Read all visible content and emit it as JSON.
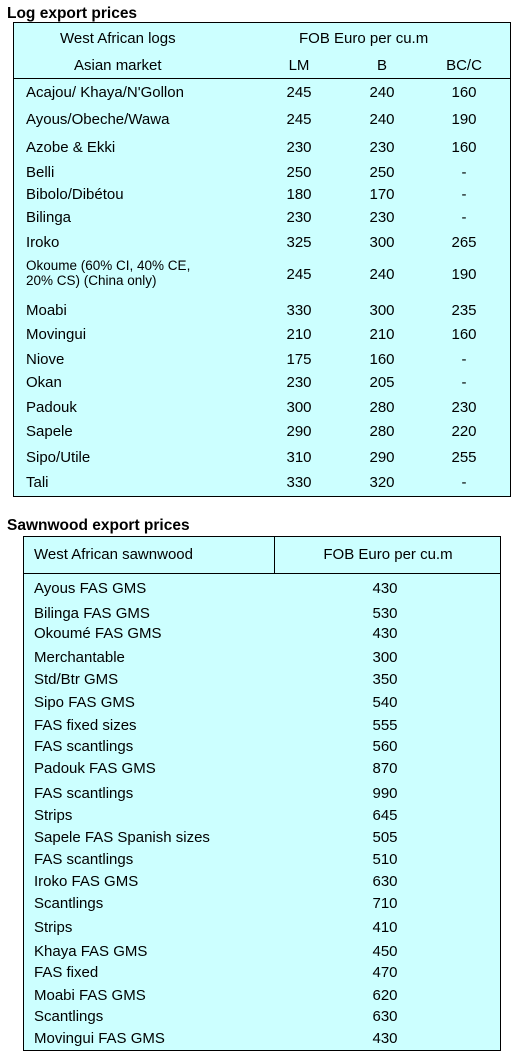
{
  "log_section": {
    "title": "Log export prices",
    "header_group": "West African logs",
    "header_price": "FOB Euro per cu.m",
    "header_market": "Asian market",
    "col_lm": "LM",
    "col_b": "B",
    "col_bcc": "BC/C",
    "rows": [
      {
        "name": "Acajou/ Khaya/N'Gollon",
        "lm": "245",
        "b": "240",
        "bcc": "160"
      },
      {
        "name": "Ayous/Obeche/Wawa",
        "lm": "245",
        "b": "240",
        "bcc": "190"
      },
      {
        "name": "Azobe & Ekki",
        "lm": "230",
        "b": "230",
        "bcc": "160"
      },
      {
        "name": "Belli",
        "lm": "250",
        "b": "250",
        "bcc": "-"
      },
      {
        "name": "Bibolo/Dibétou",
        "lm": "180",
        "b": "170",
        "bcc": "-"
      },
      {
        "name": "Bilinga",
        "lm": "230",
        "b": "230",
        "bcc": "-"
      },
      {
        "name": "Iroko",
        "lm": "325",
        "b": "300",
        "bcc": "265"
      },
      {
        "name": "Okoume (60% CI, 40% CE, 20% CS) (China only)",
        "name_line1": "Okoume (60% CI, 40% CE,",
        "name_line2": "20% CS) (China only)",
        "lm": "245",
        "b": "240",
        "bcc": "190"
      },
      {
        "name": "Moabi",
        "lm": "330",
        "b": "300",
        "bcc": "235"
      },
      {
        "name": "Movingui",
        "lm": "210",
        "b": "210",
        "bcc": "160"
      },
      {
        "name": "Niove",
        "lm": "175",
        "b": "160",
        "bcc": "-"
      },
      {
        "name": "Okan",
        "lm": "230",
        "b": "205",
        "bcc": "-"
      },
      {
        "name": "Padouk",
        "lm": "300",
        "b": "280",
        "bcc": "230"
      },
      {
        "name": "Sapele",
        "lm": "290",
        "b": "280",
        "bcc": "220"
      },
      {
        "name": "Sipo/Utile",
        "lm": "310",
        "b": "290",
        "bcc": "255"
      },
      {
        "name": "Tali",
        "lm": "330",
        "b": "320",
        "bcc": "-"
      }
    ]
  },
  "sawn_section": {
    "title": "Sawnwood export prices",
    "header_group": "West African sawnwood",
    "header_price": "FOB Euro per cu.m",
    "rows": [
      {
        "name": "Ayous FAS GMS",
        "price": "430"
      },
      {
        "name": "Bilinga FAS GMS",
        "price": "530"
      },
      {
        "name": "Okoumé FAS GMS",
        "price": "430"
      },
      {
        "name": "Merchantable",
        "price": "300"
      },
      {
        "name": "Std/Btr GMS",
        "price": "350"
      },
      {
        "name": "Sipo FAS GMS",
        "price": "540"
      },
      {
        "name": "FAS fixed sizes",
        "price": "555"
      },
      {
        "name": "FAS scantlings",
        "price": "560"
      },
      {
        "name": "Padouk FAS GMS",
        "price": "870"
      },
      {
        "name": "FAS scantlings",
        "price": "990"
      },
      {
        "name": "Strips",
        "price": "645"
      },
      {
        "name": "Sapele FAS Spanish sizes",
        "price": "505"
      },
      {
        "name": "FAS scantlings",
        "price": "510"
      },
      {
        "name": "Iroko FAS GMS",
        "price": "630"
      },
      {
        "name": "Scantlings",
        "price": "710"
      },
      {
        "name": "Strips",
        "price": "410"
      },
      {
        "name": "Khaya FAS GMS",
        "price": "450"
      },
      {
        "name": "FAS fixed",
        "price": "470"
      },
      {
        "name": "Moabi FAS GMS",
        "price": "620"
      },
      {
        "name": "Scantlings",
        "price": "630"
      },
      {
        "name": "Movingui FAS GMS",
        "price": "430"
      }
    ]
  }
}
